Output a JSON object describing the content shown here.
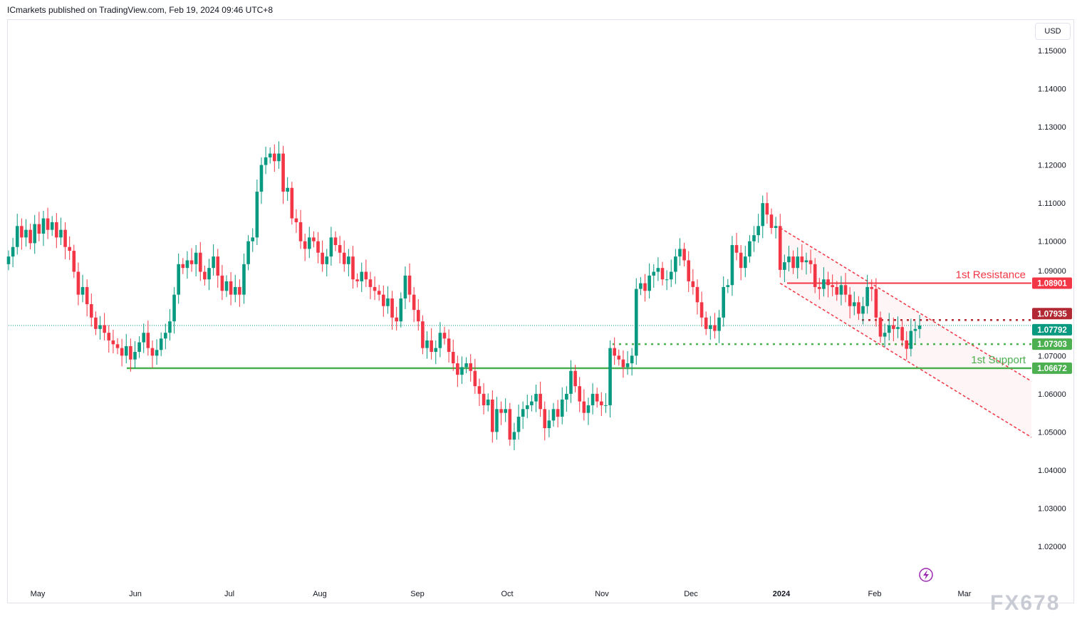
{
  "header": {
    "published": "ICmarkets published on TradingView.com, Feb 19, 2024 09:46 UTC+8"
  },
  "currency_button": "USD",
  "watermark": "FX678",
  "colors": {
    "up": "#089981",
    "down": "#f23645",
    "resistance": "#f23645",
    "support": "#4caf50",
    "dotted_red": "#b22833",
    "current": "#089981",
    "channel": "#f23645"
  },
  "icons": {
    "replay": "lightning-icon"
  },
  "chart_data": {
    "type": "candlestick",
    "title": "",
    "ylim": [
      1.01,
      1.155
    ],
    "y_ticks": [
      "1.15000",
      "1.14000",
      "1.13000",
      "1.12000",
      "1.11000",
      "1.10000",
      "1.09000",
      "1.07000",
      "1.06000",
      "1.05000",
      "1.04000",
      "1.03000",
      "1.02000"
    ],
    "x_ticks": [
      "May",
      "Jun",
      "Jul",
      "Aug",
      "Sep",
      "Oct",
      "Nov",
      "Dec",
      "2024",
      "Feb",
      "Mar"
    ],
    "first_open": 1.094,
    "closes": [
      1.096,
      1.0985,
      1.104,
      1.101,
      1.103,
      1.0995,
      1.1045,
      1.102,
      1.106,
      1.103,
      1.105,
      1.101,
      1.103,
      1.0985,
      1.0975,
      1.092,
      1.086,
      1.088,
      1.0835,
      1.08,
      1.077,
      1.078,
      1.076,
      1.074,
      1.073,
      1.072,
      1.07,
      1.0725,
      1.069,
      1.071,
      1.0735,
      1.076,
      1.072,
      1.07,
      1.0715,
      1.0745,
      1.076,
      1.079,
      1.086,
      1.094,
      1.093,
      1.095,
      1.094,
      1.097,
      1.092,
      1.09,
      1.093,
      1.096,
      1.091,
      1.087,
      1.0895,
      1.086,
      1.088,
      1.086,
      1.094,
      1.1,
      1.101,
      1.113,
      1.12,
      1.122,
      1.123,
      1.121,
      1.123,
      1.113,
      1.114,
      1.106,
      1.105,
      1.1,
      1.098,
      1.101,
      1.1,
      1.097,
      1.094,
      1.096,
      1.101,
      1.099,
      1.097,
      1.094,
      1.096,
      1.09,
      1.0895,
      1.092,
      1.09,
      1.088,
      1.087,
      1.086,
      1.083,
      1.085,
      1.08,
      1.079,
      1.085,
      1.091,
      1.086,
      1.082,
      1.079,
      1.072,
      1.074,
      1.071,
      1.072,
      1.076,
      1.0745,
      1.071,
      1.068,
      1.065,
      1.067,
      1.068,
      1.066,
      1.062,
      1.06,
      1.057,
      1.0585,
      1.05,
      1.056,
      1.055,
      1.056,
      1.048,
      1.05,
      1.054,
      1.056,
      1.057,
      1.058,
      1.06,
      1.056,
      1.051,
      1.053,
      1.056,
      1.054,
      1.0585,
      1.06,
      1.066,
      1.062,
      1.058,
      1.055,
      1.057,
      1.06,
      1.058,
      1.057,
      1.057,
      1.072,
      1.07,
      1.069,
      1.067,
      1.068,
      1.07,
      1.0875,
      1.089,
      1.087,
      1.091,
      1.092,
      1.093,
      1.09,
      1.09,
      1.092,
      1.096,
      1.098,
      1.095,
      1.0895,
      1.088,
      1.084,
      1.08,
      1.077,
      1.078,
      1.0765,
      1.08,
      1.088,
      1.0885,
      1.099,
      1.097,
      1.093,
      1.096,
      1.1,
      1.1016,
      1.104,
      1.11,
      1.107,
      1.1035,
      1.104,
      1.0925,
      1.0945,
      1.096,
      1.093,
      1.096,
      1.0945,
      1.095,
      1.094,
      1.088,
      1.0875,
      1.09,
      1.0885,
      1.088,
      1.086,
      1.0885,
      1.086,
      1.083,
      1.084,
      1.081,
      1.083,
      1.088,
      1.0875,
      1.08,
      1.075,
      1.076,
      1.078,
      1.077,
      1.0775,
      1.074,
      1.0718,
      1.0765,
      1.077,
      1.0779
    ],
    "levels": [
      {
        "name": "resistance",
        "label": "1st Resistance",
        "price": 1.08901,
        "price_label": "1.08901",
        "style": "solid"
      },
      {
        "name": "support",
        "label": "1st Support",
        "price": 1.06672,
        "price_label": "1.06672",
        "style": "solid"
      },
      {
        "name": "dotted-red",
        "label": "",
        "price": 1.07935,
        "price_label": "1.07935",
        "style": "dotted"
      },
      {
        "name": "dotted-green",
        "label": "",
        "price": 1.07303,
        "price_label": "1.07303",
        "style": "dotted"
      },
      {
        "name": "current-price",
        "label": "",
        "price": 1.07792,
        "price_label": "1.07792",
        "style": "dotted"
      }
    ],
    "channel": {
      "upper": [
        1.1035,
        1.0633
      ],
      "lower": [
        1.089,
        1.0486
      ]
    }
  }
}
